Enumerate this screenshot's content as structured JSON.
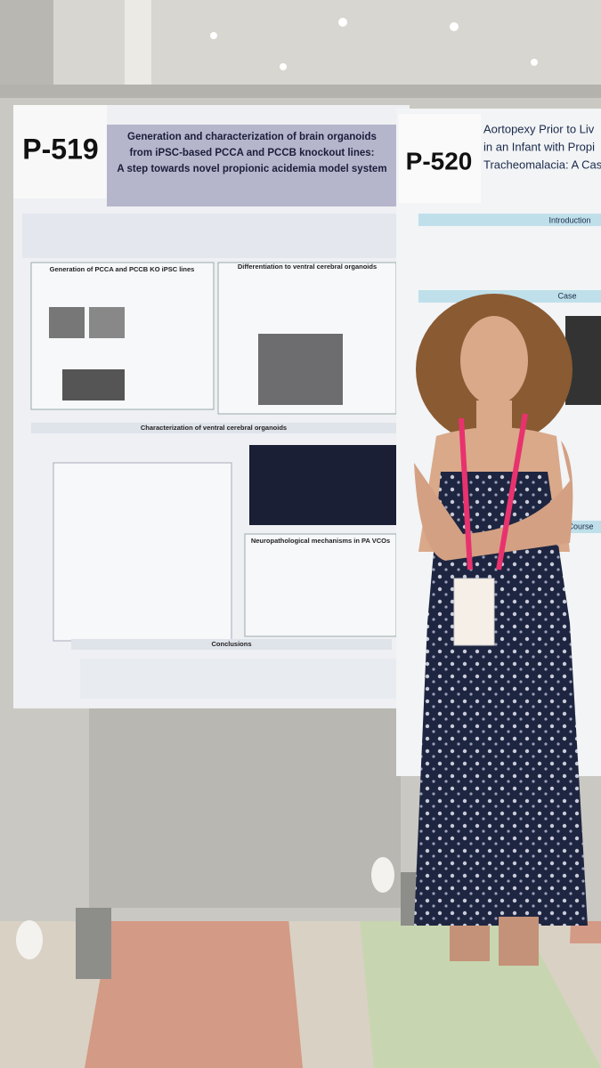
{
  "posters": [
    {
      "number": "P-519",
      "title_lines": [
        "Generation and characterization of brain organoids",
        "from iPSC-based PCCA and PCCB knockout lines:",
        "A step towards novel propionic acidemia model system"
      ],
      "sections": [
        "Generation of PCCA and PCCB KO iPSC lines",
        "Differentiation to ventral cerebral organoids",
        "Characterization of ventral cerebral organoids",
        "Neuropathological mechanisms in PA VCOs",
        "Conclusions"
      ]
    },
    {
      "number": "P-520",
      "title_lines": [
        "Aortopexy Prior to Liv",
        "in an Infant with Propi",
        "Tracheomalacia: A Case a"
      ],
      "sections": [
        "Introduction",
        "Case",
        "Course"
      ]
    }
  ]
}
